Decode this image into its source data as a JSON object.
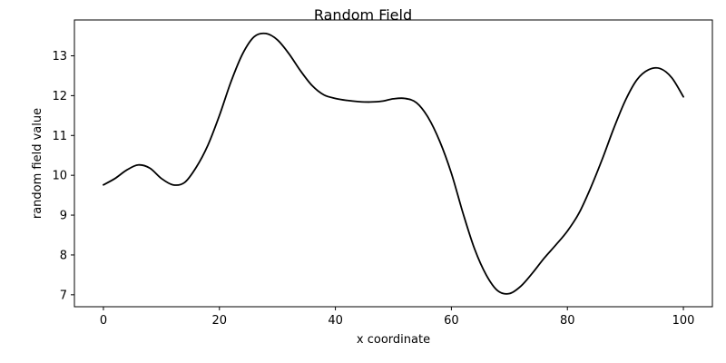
{
  "chart_data": {
    "type": "line",
    "title": "Random Field",
    "xlabel": "x coordinate",
    "ylabel": "random field value",
    "xlim": [
      -5,
      105
    ],
    "ylim": [
      6.7,
      13.9
    ],
    "xticks": [
      0,
      20,
      40,
      60,
      80,
      100
    ],
    "yticks": [
      7,
      8,
      9,
      10,
      11,
      12,
      13
    ],
    "grid": false,
    "line_color": "#000000",
    "series": [
      {
        "x": [
          0,
          2,
          4,
          6,
          8,
          10,
          12,
          14,
          16,
          18,
          20,
          22,
          24,
          26,
          28,
          30,
          32,
          34,
          36,
          38,
          40,
          42,
          44,
          46,
          48,
          50,
          52,
          54,
          56,
          58,
          60,
          62,
          64,
          66,
          68,
          70,
          72,
          74,
          76,
          78,
          80,
          82,
          84,
          86,
          88,
          90,
          92,
          94,
          96,
          98,
          100
        ],
        "values": [
          9.76,
          9.92,
          10.13,
          10.26,
          10.18,
          9.92,
          9.76,
          9.82,
          10.2,
          10.75,
          11.5,
          12.35,
          13.05,
          13.48,
          13.56,
          13.4,
          13.05,
          12.62,
          12.25,
          12.02,
          11.93,
          11.88,
          11.85,
          11.84,
          11.86,
          11.92,
          11.93,
          11.82,
          11.45,
          10.85,
          10.05,
          9.05,
          8.15,
          7.5,
          7.1,
          7.03,
          7.22,
          7.55,
          7.92,
          8.25,
          8.6,
          9.05,
          9.68,
          10.4,
          11.18,
          11.88,
          12.4,
          12.65,
          12.68,
          12.45,
          11.97
        ]
      }
    ]
  }
}
